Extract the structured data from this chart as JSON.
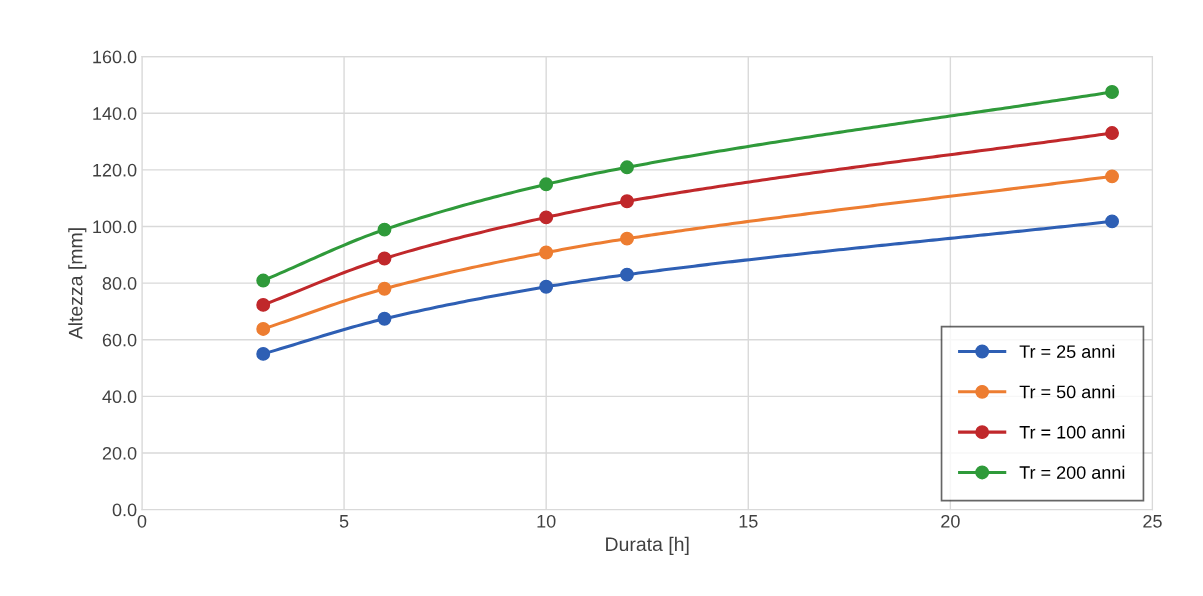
{
  "chart_data": {
    "type": "line",
    "xlabel": "Durata [h]",
    "ylabel": "Altezza [mm]",
    "x": [
      3,
      6,
      10,
      12,
      24
    ],
    "series": [
      {
        "name": "Tr = 25 anni",
        "color": "#2e5fb4",
        "values": [
          55.0,
          67.4,
          78.7,
          83.0,
          101.8
        ]
      },
      {
        "name": "Tr = 50 anni",
        "color": "#ed7d31",
        "values": [
          63.8,
          78.0,
          90.8,
          95.7,
          117.7
        ]
      },
      {
        "name": "Tr = 100 anni",
        "color": "#c0282b",
        "values": [
          72.3,
          88.7,
          103.2,
          108.9,
          133.0
        ]
      },
      {
        "name": "Tr = 200 anni",
        "color": "#2f9a3a",
        "values": [
          80.9,
          98.9,
          114.9,
          120.9,
          147.5
        ]
      }
    ],
    "xlim": [
      0,
      25
    ],
    "xticks": [
      0,
      5,
      10,
      15,
      20,
      25
    ],
    "ylim": [
      0,
      160
    ],
    "yticks": [
      {
        "value": 0,
        "label": "0.0"
      },
      {
        "value": 20,
        "label": "20.0"
      },
      {
        "value": 40,
        "label": "40.0"
      },
      {
        "value": 60,
        "label": "60.0"
      },
      {
        "value": 80,
        "label": "80.0"
      },
      {
        "value": 100,
        "label": "100.0"
      },
      {
        "value": 120,
        "label": "120.0"
      },
      {
        "value": 140,
        "label": "140.0"
      },
      {
        "value": 160,
        "label": "160.0"
      }
    ],
    "grid": true,
    "legend": "bottom right",
    "marker": "circle",
    "line_style": "solid"
  }
}
